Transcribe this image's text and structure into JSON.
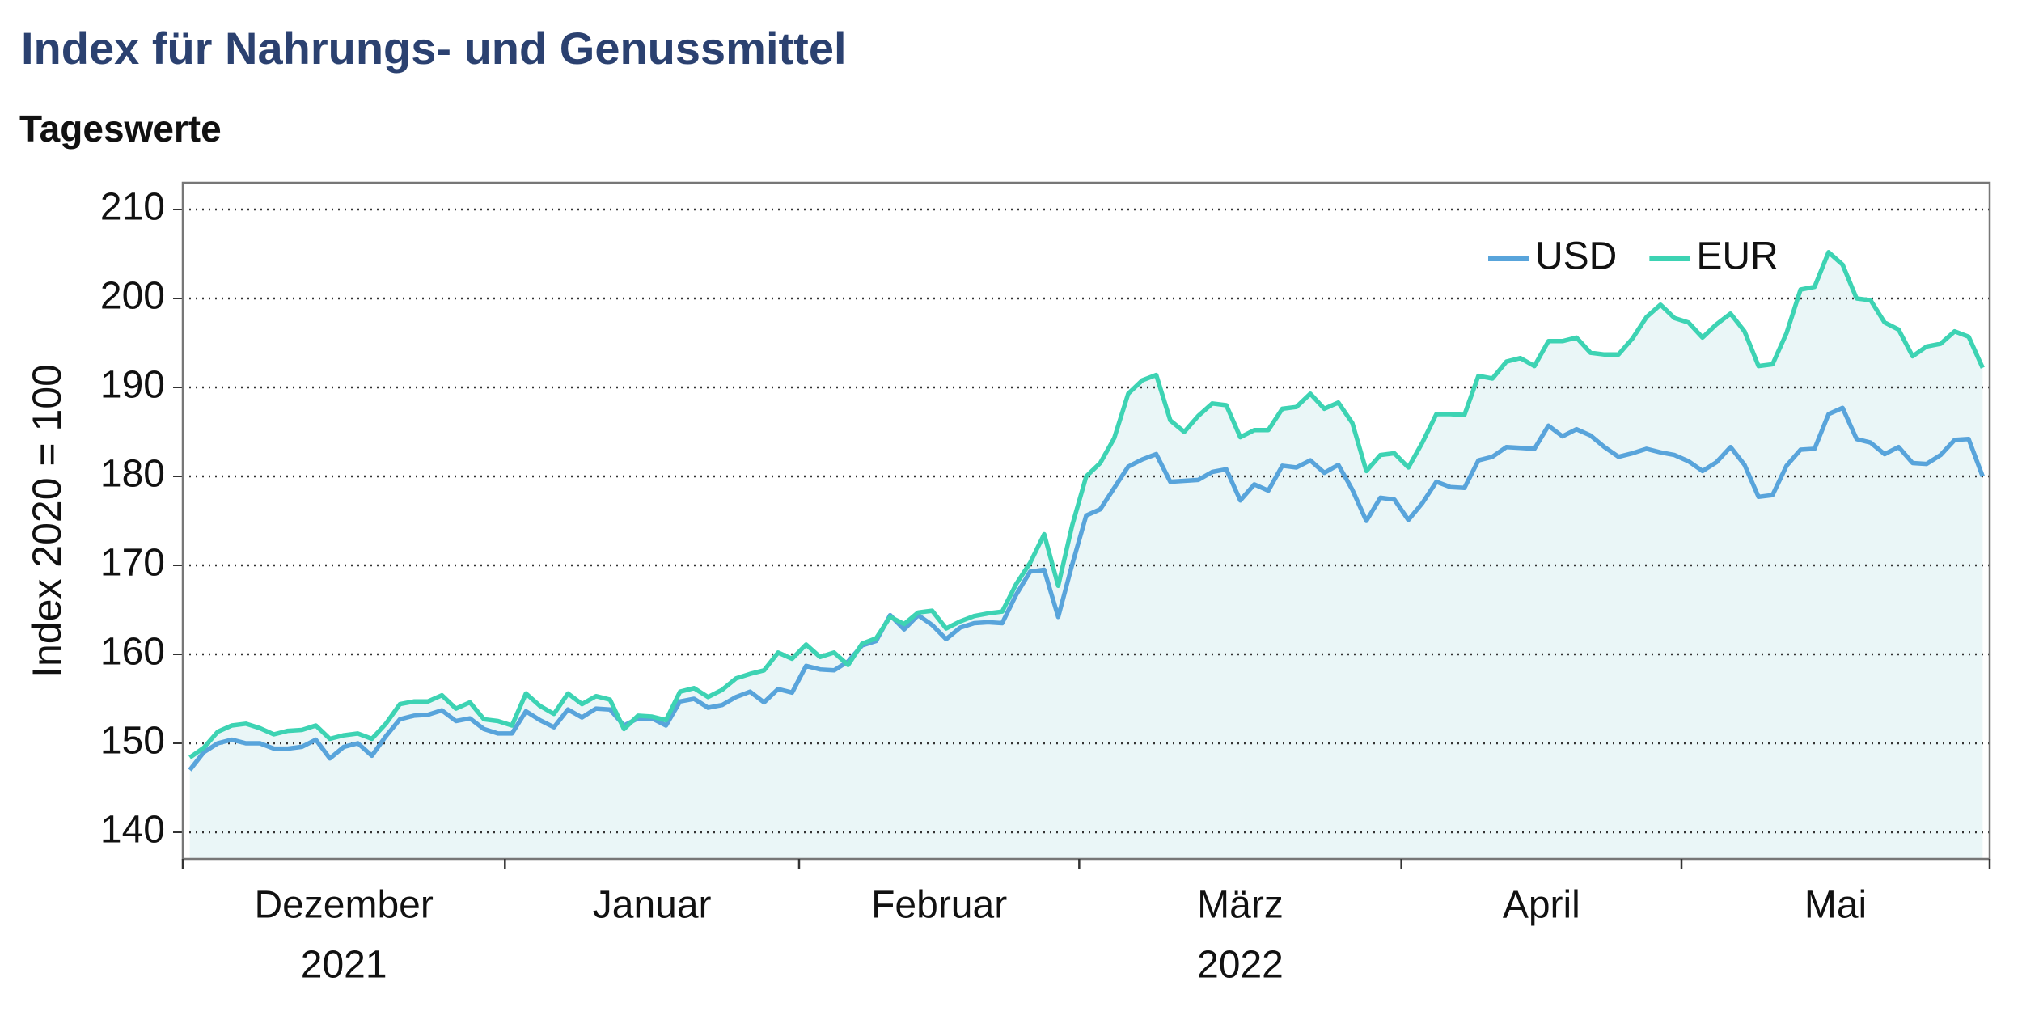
{
  "chart_data": {
    "type": "line",
    "title": "Index für Nahrungs- und Genussmittel",
    "subtitle": "Tageswerte",
    "y_label": "Index 2020 = 100",
    "months": [
      "Dezember",
      "Januar",
      "Februar",
      "März",
      "April",
      "Mai"
    ],
    "years": [
      "2021",
      null,
      null,
      "2022",
      null,
      null
    ],
    "xlim": [
      -0.5,
      128.5
    ],
    "xticks": [
      -0.5,
      22.5,
      43.5,
      63.5,
      86.5,
      106.5,
      128.5
    ],
    "ylim": [
      137,
      213
    ],
    "yticks": [
      140,
      150,
      160,
      170,
      180,
      190,
      200,
      210
    ],
    "grid": true,
    "legend": "upper right",
    "fill_color": "#eaf6f7",
    "series": [
      {
        "name": "USD",
        "color": "#58a4db",
        "values": [
          147,
          149,
          150,
          150.4,
          150,
          150,
          149.4,
          149.4,
          149.6,
          150.4,
          148.3,
          149.6,
          150,
          148.6,
          150.8,
          152.7,
          153.1,
          153.2,
          153.7,
          152.5,
          152.8,
          151.6,
          151.1,
          151.1,
          153.6,
          152.6,
          151.8,
          153.8,
          152.9,
          153.9,
          153.8,
          152,
          152.8,
          152.8,
          152,
          154.7,
          155,
          154,
          154.3,
          155.2,
          155.8,
          154.6,
          156.1,
          155.7,
          158.7,
          158.3,
          158.2,
          159.2,
          161,
          161.5,
          164.4,
          162.8,
          164.4,
          163.3,
          161.7,
          163,
          163.5,
          163.6,
          163.5,
          166.7,
          169.3,
          169.5,
          164.2,
          170.1,
          175.6,
          176.3,
          178.7,
          181.1,
          181.9,
          182.5,
          179.4,
          179.5,
          179.6,
          180.5,
          180.8,
          177.3,
          179.1,
          178.4,
          181.2,
          181,
          181.8,
          180.4,
          181.3,
          178.5,
          175,
          177.6,
          177.4,
          175.1,
          177,
          179.4,
          178.8,
          178.7,
          181.8,
          182.2,
          183.3,
          183.2,
          183.1,
          185.7,
          184.5,
          185.3,
          184.6,
          183.3,
          182.2,
          182.6,
          183.1,
          182.7,
          182.4,
          181.7,
          180.6,
          181.6,
          183.3,
          181.3,
          177.7,
          177.9,
          181.2,
          183,
          183.1,
          187,
          187.7,
          184.2,
          183.8,
          182.5,
          183.3,
          181.5,
          181.4,
          182.4,
          184.1,
          184.2,
          180
        ]
      },
      {
        "name": "EUR",
        "color": "#3dd3b3",
        "values": [
          148.4,
          149.5,
          151.3,
          152,
          152.2,
          151.7,
          151,
          151.4,
          151.5,
          152,
          150.5,
          150.9,
          151.1,
          150.5,
          152.2,
          154.4,
          154.7,
          154.7,
          155.4,
          153.9,
          154.6,
          152.7,
          152.5,
          152,
          155.6,
          154.2,
          153.3,
          155.6,
          154.4,
          155.3,
          154.9,
          151.6,
          153.1,
          153,
          152.6,
          155.8,
          156.2,
          155.2,
          156,
          157.3,
          157.8,
          158.2,
          160.2,
          159.5,
          161.1,
          159.7,
          160.2,
          158.8,
          161.2,
          161.8,
          164.2,
          163.4,
          164.7,
          164.9,
          162.9,
          163.7,
          164.3,
          164.6,
          164.8,
          167.9,
          170.3,
          173.5,
          167.7,
          174.5,
          180,
          181.5,
          184.3,
          189.3,
          190.8,
          191.4,
          186.3,
          185,
          186.8,
          188.2,
          188,
          184.4,
          185.2,
          185.2,
          187.6,
          187.8,
          189.3,
          187.6,
          188.3,
          186,
          180.6,
          182.4,
          182.6,
          181,
          183.8,
          187,
          187,
          186.9,
          191.3,
          191,
          192.9,
          193.3,
          192.4,
          195.2,
          195.2,
          195.6,
          193.9,
          193.7,
          193.7,
          195.5,
          197.9,
          199.3,
          197.8,
          197.3,
          195.6,
          197.1,
          198.3,
          196.3,
          192.4,
          192.6,
          196.1,
          201,
          201.3,
          205.2,
          203.8,
          200,
          199.8,
          197.3,
          196.5,
          193.5,
          194.6,
          194.9,
          196.3,
          195.7,
          192.2
        ]
      }
    ]
  }
}
